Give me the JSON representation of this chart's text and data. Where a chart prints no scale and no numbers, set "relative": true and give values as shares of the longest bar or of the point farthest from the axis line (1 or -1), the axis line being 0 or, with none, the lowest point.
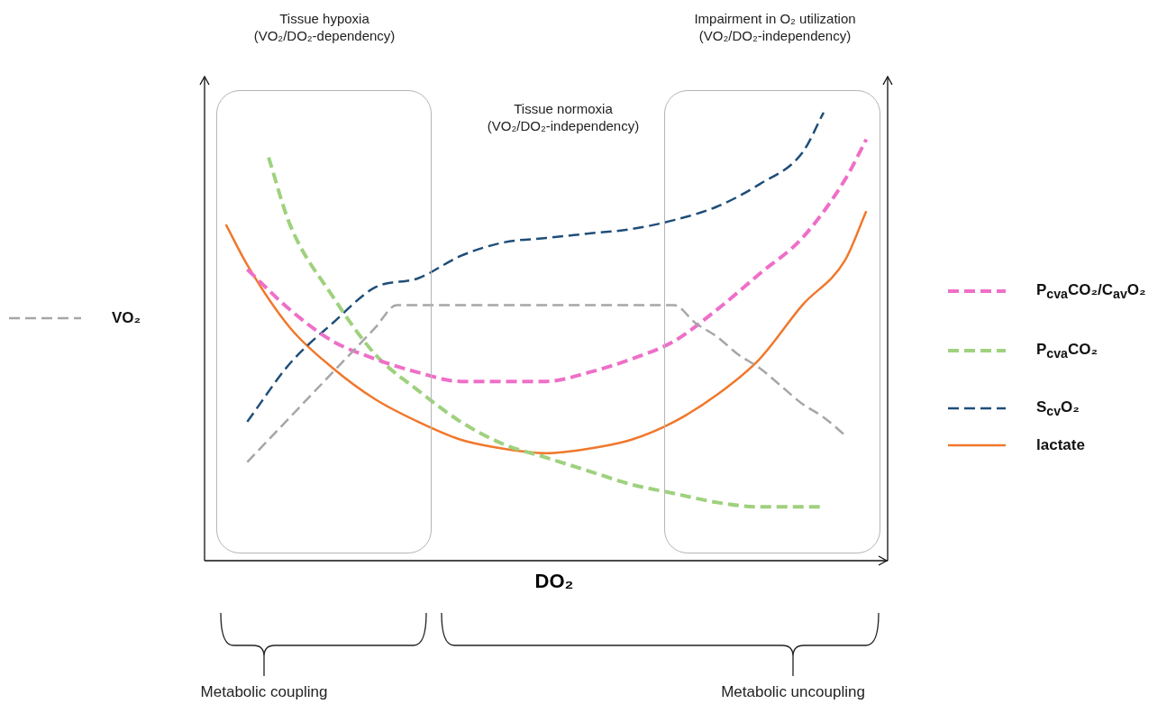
{
  "chart_data": {
    "type": "line",
    "relative": true,
    "xlabel": "DO₂",
    "legend": "right",
    "marker": "none",
    "categories": [
      null,
      null,
      null,
      null,
      null,
      null,
      null,
      null,
      null,
      null,
      null,
      null,
      null,
      null,
      null,
      null,
      null,
      null,
      null,
      null,
      null,
      null,
      null,
      null,
      null,
      null,
      null,
      null,
      null,
      null,
      null,
      null,
      null
    ],
    "series": [
      {
        "name": "VO₂",
        "color": "#a6a6a6",
        "line_style": "dashed",
        "values": [
          null,
          null,
          0.22,
          0.27,
          0.32,
          0.37,
          0.42,
          0.47,
          0.52,
          0.57,
          0.57,
          0.57,
          0.57,
          0.57,
          0.57,
          0.57,
          0.57,
          0.57,
          0.57,
          0.57,
          0.57,
          0.57,
          0.57,
          0.53,
          0.5,
          0.46,
          0.43,
          0.39,
          0.35,
          0.32,
          0.28,
          null,
          null
        ]
      },
      {
        "name": "P$_{cva}$CO₂/C$_{av}$O₂",
        "color": "#ee6fc8",
        "line_style": "dashed",
        "values": [
          null,
          null,
          0.65,
          null,
          0.56,
          null,
          0.49,
          null,
          0.45,
          null,
          0.42,
          null,
          0.4,
          null,
          0.4,
          null,
          0.4,
          null,
          0.42,
          null,
          0.45,
          null,
          0.49,
          null,
          0.56,
          null,
          0.64,
          null,
          0.72,
          null,
          0.85,
          0.94,
          null
        ]
      },
      {
        "name": "P$_{cva}$CO₂",
        "color": "#9fd17e",
        "line_style": "dashed",
        "values": [
          null,
          null,
          null,
          0.9,
          0.75,
          null,
          0.59,
          null,
          0.46,
          null,
          0.38,
          null,
          0.31,
          null,
          0.26,
          null,
          0.23,
          null,
          0.2,
          null,
          0.17,
          null,
          0.15,
          null,
          0.13,
          null,
          0.12,
          null,
          0.12,
          0.12,
          null,
          null,
          null
        ]
      },
      {
        "name": "S$_{cv}$O₂",
        "color": "#1f4e79",
        "line_style": "dashed",
        "values": [
          null,
          null,
          0.31,
          null,
          0.44,
          null,
          0.53,
          null,
          0.61,
          null,
          0.63,
          null,
          0.68,
          null,
          0.71,
          null,
          0.72,
          null,
          0.73,
          null,
          0.74,
          null,
          0.76,
          null,
          0.79,
          null,
          0.84,
          null,
          0.91,
          1,
          null,
          null,
          null
        ]
      },
      {
        "name": "lactate",
        "color": "#f0782c",
        "line_style": "solid",
        "values": [
          null,
          0.75,
          0.66,
          null,
          0.52,
          null,
          0.43,
          null,
          0.36,
          null,
          0.31,
          null,
          0.27,
          null,
          0.25,
          null,
          0.24,
          null,
          0.25,
          null,
          0.27,
          null,
          0.31,
          null,
          0.37,
          null,
          0.45,
          null,
          0.57,
          null,
          0.67,
          0.78,
          null
        ]
      }
    ],
    "annotations": [
      "Tissue hypoxia\n(VO₂/DO₂-dependency)",
      "Tissue normoxia\n(VO₂/DO₂-independency)",
      "Impairment in O₂ utilization\n(VO₂/DO₂-independency)",
      "Metabolic coupling",
      "Metabolic uncoupling"
    ]
  }
}
